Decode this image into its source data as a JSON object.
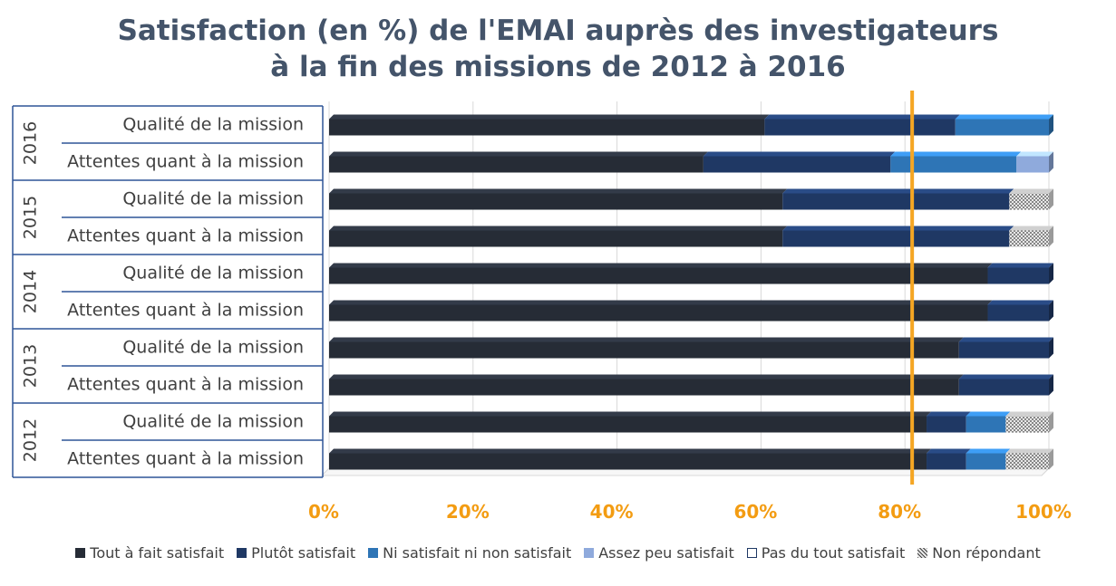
{
  "chart_data": {
    "type": "bar",
    "orientation": "horizontal",
    "stacked": "percent",
    "title_line1": "Satisfaction (en %) de l'EMAI auprès des investigateurs",
    "title_line2": "à la fin des missions de 2012 à 2016",
    "groups": [
      {
        "year": "2016",
        "rows": [
          "Qualité de la mission",
          "Attentes quant à la mission"
        ]
      },
      {
        "year": "2015",
        "rows": [
          "Qualité de la mission",
          "Attentes quant à la mission"
        ]
      },
      {
        "year": "2014",
        "rows": [
          "Qualité de la mission",
          "Attentes quant à la mission"
        ]
      },
      {
        "year": "2013",
        "rows": [
          "Qualité de la mission",
          "Attentes quant à la mission"
        ]
      },
      {
        "year": "2012",
        "rows": [
          "Qualité de la mission",
          "Attentes quant à la mission"
        ]
      }
    ],
    "categories": [
      "2016 - Qualité de la mission",
      "2016 - Attentes quant à la mission",
      "2015 - Qualité de la mission",
      "2015 - Attentes quant à la mission",
      "2014 - Qualité de la mission",
      "2014 - Attentes quant à la mission",
      "2013 - Qualité de la mission",
      "2013 - Attentes quant à la mission",
      "2012 - Qualité de la mission",
      "2012 - Attentes quant à la mission"
    ],
    "series": [
      {
        "name": "Tout à fait satisfait",
        "color": "#262c36",
        "values": [
          60.5,
          52,
          63,
          63,
          91.5,
          91.5,
          87.5,
          87.5,
          83,
          83
        ]
      },
      {
        "name": "Plutôt satisfait",
        "color": "#1f3864",
        "values": [
          26.5,
          26,
          31.5,
          31.5,
          8.5,
          8.5,
          12.5,
          12.5,
          5.5,
          5.5
        ]
      },
      {
        "name": "Ni satisfait ni non satisfait",
        "color": "#2e75b6",
        "values": [
          13,
          17.5,
          0,
          0,
          0,
          0,
          0,
          0,
          5.5,
          5.5
        ]
      },
      {
        "name": "Assez peu satisfait",
        "color": "#8faadc",
        "values": [
          0,
          4.5,
          0,
          0,
          0,
          0,
          0,
          0,
          0,
          0
        ]
      },
      {
        "name": "Pas du tout satisfait",
        "color": "#ffffff",
        "values": [
          0,
          0,
          0,
          0,
          0,
          0,
          0,
          0,
          0,
          0
        ]
      },
      {
        "name": "Non répondant",
        "color": "#bfbfbf",
        "pattern": "dotted",
        "values": [
          0,
          0,
          5.5,
          5.5,
          0,
          0,
          0,
          0,
          6,
          6
        ]
      }
    ],
    "xlim": [
      0,
      100
    ],
    "x_ticks": [
      "0%",
      "20%",
      "40%",
      "60%",
      "80%",
      "100%"
    ],
    "reference_line": {
      "value": 81,
      "color": "#f5a623"
    },
    "grid": true,
    "legend_position": "bottom",
    "colors": {
      "tick_labels": "#f39c12",
      "title": "#44546a",
      "grid": "#d9d9d9",
      "axis": "#2f5597"
    }
  }
}
